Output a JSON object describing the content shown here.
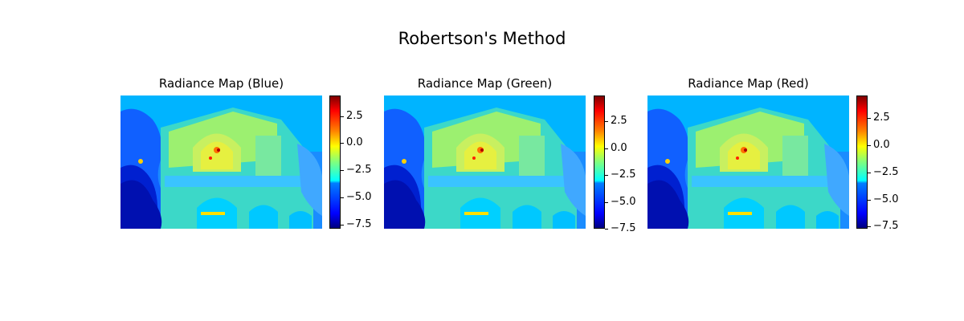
{
  "suptitle": "Robertson's Method",
  "chart_data": [
    {
      "type": "heatmap",
      "title": "Radiance Map (Blue)",
      "colormap": "jet",
      "axis": "off",
      "colorbar": {
        "vmin": -7.9,
        "vmax": 4.4,
        "ticks": [
          2.5,
          0.0,
          -2.5,
          -5.0,
          -7.5
        ],
        "ticklabels": [
          "2.5",
          "0.0",
          "−2.5",
          "−5.0",
          "−7.5"
        ]
      }
    },
    {
      "type": "heatmap",
      "title": "Radiance Map (Green)",
      "colormap": "jet",
      "axis": "off",
      "colorbar": {
        "vmin": -7.5,
        "vmax": 4.9,
        "ticks": [
          2.5,
          0.0,
          -2.5,
          -5.0,
          -7.5
        ],
        "ticklabels": [
          "2.5",
          "0.0",
          "−2.5",
          "−5.0",
          "−7.5"
        ]
      }
    },
    {
      "type": "heatmap",
      "title": "Radiance Map (Red)",
      "colormap": "jet",
      "axis": "off",
      "colorbar": {
        "vmin": -7.7,
        "vmax": 4.6,
        "ticks": [
          2.5,
          0.0,
          -2.5,
          -5.0,
          -7.5
        ],
        "ticklabels": [
          "2.5",
          "0.0",
          "−2.5",
          "−5.0",
          "−7.5"
        ]
      }
    }
  ]
}
